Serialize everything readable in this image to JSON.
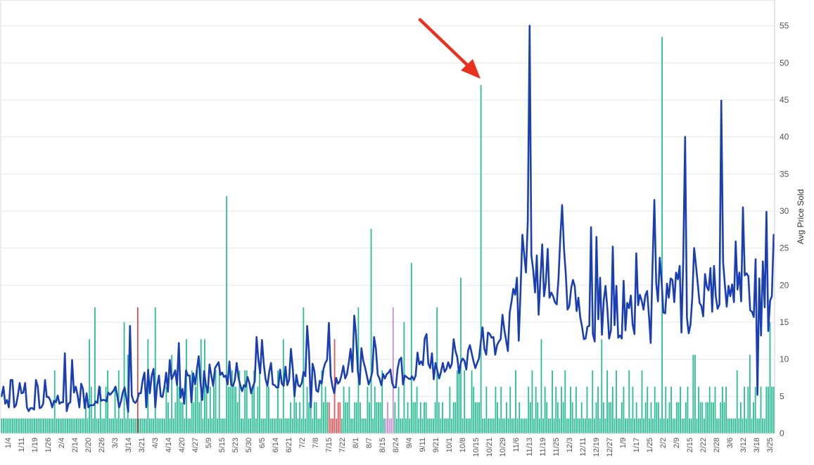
{
  "chart_data": {
    "type": "bar+line",
    "xlabel": "",
    "ylabel": "Avg Price Sold",
    "ylim": [
      0,
      58
    ],
    "yticks": [
      0,
      5,
      10,
      15,
      20,
      25,
      30,
      35,
      40,
      45,
      50,
      55
    ],
    "grid": true,
    "legend": "none",
    "xtick_labels": [
      "1/4",
      "1/11",
      "1/19",
      "1/26",
      "2/4",
      "2/14",
      "2/20",
      "2/26",
      "3/3",
      "3/14",
      "3/21",
      "4/3",
      "4/14",
      "4/20",
      "4/27",
      "5/9",
      "5/15",
      "5/23",
      "5/30",
      "6/5",
      "6/14",
      "6/21",
      "7/2",
      "7/8",
      "7/15",
      "7/22",
      "8/1",
      "8/7",
      "8/15",
      "8/24",
      "9/4",
      "9/11",
      "9/21",
      "10/1",
      "10/8",
      "10/15",
      "10/21",
      "10/29",
      "11/6",
      "11/13",
      "11/19",
      "11/25",
      "12/3",
      "12/11",
      "12/19",
      "12/27",
      "1/9",
      "1/17",
      "1/25",
      "2/2",
      "2/9",
      "2/15",
      "2/22",
      "2/28",
      "3/6",
      "3/12",
      "3/18",
      "3/25"
    ],
    "bar_values": [
      2,
      2,
      2,
      2,
      2,
      2,
      2,
      2,
      2,
      2,
      2,
      2,
      2,
      2,
      2,
      2,
      2,
      2,
      2,
      2,
      2,
      2,
      2,
      2,
      2,
      2,
      2,
      2,
      2,
      8.5,
      2,
      2,
      2,
      2,
      2,
      2,
      2,
      2,
      2,
      2,
      2,
      2,
      2,
      2,
      2,
      2,
      4,
      2,
      12.7,
      6.3,
      2,
      17,
      2,
      2,
      6.3,
      2,
      2,
      6.3,
      8.5,
      2,
      2,
      2,
      6.3,
      2,
      8.5,
      2,
      2,
      15,
      2,
      10.6,
      2,
      2,
      2,
      2,
      2,
      2,
      2,
      2,
      2,
      2,
      12.7,
      2,
      2,
      2,
      17,
      2,
      2,
      2,
      2,
      2,
      6.3,
      4.2,
      2,
      10.6,
      2,
      4.2,
      8.5,
      6.3,
      4.2,
      4.2,
      2,
      12.7,
      2,
      2,
      8.5,
      4.2,
      6.3,
      8.5,
      4.2,
      12.7,
      2,
      12.7,
      6.3,
      2,
      6.3,
      2,
      6.3,
      8.5,
      2,
      8.5,
      2,
      2,
      2,
      32,
      6.3,
      6.3,
      8.5,
      6.3,
      6.3,
      4.2,
      8.5,
      2,
      2,
      8.5,
      8.5,
      2,
      2,
      6.3,
      8.5,
      2,
      6.3,
      8.5,
      2,
      2,
      2,
      6.3,
      6.3,
      2,
      2,
      2,
      2,
      8.5,
      2,
      2,
      12.7,
      2,
      2,
      2,
      4.2,
      2,
      6.3,
      4.2,
      2,
      4.2,
      2,
      17,
      2,
      6.3,
      4.2,
      4.2,
      2,
      4.2,
      4.2,
      2,
      2,
      8.5,
      4.2,
      6.3,
      4.2,
      4.2,
      2,
      2,
      12.7,
      2,
      4.2,
      4.2,
      2,
      6.3,
      4.2,
      4.2,
      6.3,
      2,
      2,
      4.2,
      4.2,
      17,
      4.2,
      2,
      2,
      2,
      6.3,
      4.2,
      27.6,
      2,
      6.3,
      4.2,
      4.2,
      4.2,
      8.5,
      2,
      2,
      4.2,
      2,
      2,
      17,
      4.2,
      2,
      6.3,
      2,
      2,
      15,
      2,
      4.2,
      2,
      23,
      4.2,
      4.2,
      6.3,
      2,
      4.2,
      2,
      4.2,
      4.2,
      2,
      2,
      2,
      2,
      4.2,
      17,
      4.2,
      2,
      4.2,
      2,
      2,
      2,
      6.3,
      2,
      4.2,
      4.2,
      8.5,
      8.5,
      21,
      2,
      8.5,
      2,
      2,
      2,
      8.5,
      6.3,
      4.2,
      4.2,
      4.2,
      47,
      2,
      2,
      6.3,
      2,
      2,
      2,
      2,
      6.3,
      4.2,
      2,
      6.3,
      2,
      2,
      4.2,
      2,
      6.3,
      2,
      2,
      8.5,
      2,
      4.2,
      2,
      2,
      2,
      2,
      6.3,
      4.2,
      8.5,
      2,
      6.3,
      4.2,
      2,
      12.7,
      2,
      6.3,
      4.2,
      2,
      2,
      8.5,
      2,
      6.3,
      4.2,
      2,
      6.3,
      4.2,
      8.5,
      2,
      2,
      6.3,
      4.2,
      2,
      6.3,
      2,
      2,
      4.2,
      2,
      2,
      6.3,
      2,
      2,
      8.5,
      2,
      4.2,
      6.3,
      2,
      12.7,
      4.2,
      2,
      8.5,
      4.2,
      4.2,
      6.3,
      2,
      8.5,
      2,
      2,
      4.2,
      6.3,
      2,
      2,
      8.5,
      2,
      6.3,
      2,
      4.2,
      2,
      2,
      8.5,
      2,
      4.2,
      6.3,
      2,
      4.2,
      2,
      6.3,
      4.2,
      4.2,
      2,
      53.5,
      2,
      6.3,
      2,
      4.2,
      6.3,
      2,
      2,
      4.2,
      4.2,
      6.3,
      2,
      2,
      4.2,
      6.3,
      2,
      2,
      10.6,
      10.6,
      2,
      6.3,
      4.2,
      4.2,
      2,
      4.2,
      4.2,
      6.3,
      4.2,
      4.2,
      6.3,
      2,
      2,
      4.2,
      6.3,
      4.2,
      6.3,
      2,
      2,
      2,
      2,
      2,
      8.5,
      2,
      4.2,
      2,
      6.3,
      2,
      6.3,
      10.6,
      2,
      4.2,
      6.3,
      2,
      2,
      6.3,
      2,
      2,
      6.3,
      6.3,
      15,
      6.3,
      6.3
    ],
    "line_values": [
      5,
      6.3,
      4,
      4.5,
      3.5,
      7.2,
      7.2,
      3.5,
      3.8,
      5.1,
      6.8,
      5.4,
      5.5,
      6.8,
      3.5,
      3,
      3.4,
      3.4,
      3.2,
      7.2,
      6.3,
      3.4,
      3.5,
      4,
      7.2,
      4.9,
      4.9,
      4.4,
      3.5,
      4.4,
      4.2,
      5.1,
      4,
      4.2,
      4.2,
      10.8,
      3,
      4,
      4.2,
      9.9,
      5.5,
      6.3,
      5.2,
      3.5,
      6.7,
      6,
      3.4,
      5.4,
      3.5,
      3.8,
      3.8,
      3.8,
      4.3,
      4.1,
      6.3,
      4.4,
      4.5,
      4.5,
      4.3,
      5.5,
      5.2,
      5.5,
      5.8,
      6.3,
      5,
      3.5,
      4.3,
      5.5,
      6.2,
      4.7,
      2.9,
      14.5,
      5.1,
      4.3,
      4.1,
      4.5,
      5.4,
      5.4,
      7.2,
      8.2,
      3.5,
      8.6,
      5.4,
      7.8,
      8.7,
      3.5,
      6.4,
      7.8,
      5,
      4.9,
      6.2,
      8.2,
      5.6,
      9.9,
      7.3,
      7.8,
      8.5,
      6.5,
      12.2,
      4.8,
      6,
      4,
      8.5,
      7.8,
      7.8,
      4.2,
      8.1,
      6.6,
      8.7,
      10.4,
      6.8,
      4.5,
      8.4,
      6.5,
      5.5,
      9.3,
      7.8,
      6.4,
      8.8,
      9.2,
      9.6,
      7.9,
      8.2,
      7.6,
      7.8,
      6.6,
      9.7,
      6.5,
      6.4,
      7.2,
      9.5,
      7.5,
      6.5,
      5.7,
      6.5,
      6.3,
      7.6,
      6.8,
      5.4,
      6.3,
      7,
      13,
      10,
      8.1,
      12.6,
      9.4,
      7.3,
      6.4,
      8.3,
      9.5,
      6.6,
      6.5,
      6.2,
      6.2,
      8.6,
      6.7,
      6.4,
      9,
      6.5,
      7.2,
      11.4,
      8.8,
      5,
      7.9,
      6.5,
      6.3,
      6.8,
      8.3,
      7.7,
      14.5,
      11,
      3.5,
      9.4,
      8.4,
      5.8,
      5.6,
      7.1,
      6.7,
      8.7,
      9.5,
      9.9,
      14.9,
      7.8,
      6.3,
      5.4,
      7.5,
      6.7,
      7,
      7.9,
      9.1,
      7.4,
      8,
      9.5,
      11.4,
      8.3,
      15.9,
      13.4,
      8.4,
      6.6,
      11.5,
      9.8,
      8.9,
      7.8,
      6.6,
      7.3,
      8.3,
      13,
      11.4,
      7.9,
      7.4,
      6.5,
      8,
      7.4,
      8,
      8.2,
      8.6,
      6.8,
      6.2,
      6.2,
      8.7,
      9.9,
      10.2,
      6.6,
      7.8,
      7.6,
      7.4,
      7.3,
      7.7,
      7.2,
      7.8,
      10.9,
      9.3,
      9.7,
      9.2,
      12.8,
      13.4,
      9.4,
      8.8,
      10.8,
      7.3,
      9.5,
      8.4,
      7.4,
      8.3,
      9.5,
      8.3,
      8.7,
      9.6,
      8.8,
      9.4,
      12.7,
      11.1,
      10.3,
      8.1,
      9.6,
      10.1,
      9.8,
      8.6,
      11.2,
      11.9,
      10.8,
      9.7,
      8.8,
      9.5,
      10.1,
      12.3,
      14.3,
      11.4,
      10.6,
      13.6,
      13.4,
      12.9,
      13,
      10.6,
      11.9,
      12.4,
      12.7,
      16,
      14,
      12.6,
      11.1,
      16.3,
      17.8,
      19.5,
      18.7,
      21,
      12.5,
      19.2,
      26.8,
      24.2,
      21.7,
      28.7,
      55,
      24,
      22,
      19,
      24,
      16,
      21,
      25.5,
      18.5,
      20.4,
      24.9,
      18.3,
      19,
      18.5,
      17.7,
      17.4,
      21,
      26.4,
      30.8,
      25,
      21.5,
      16.7,
      17.2,
      19.6,
      20.7,
      19.8,
      16.5,
      18.3,
      15.7,
      14.4,
      12.7,
      12.8,
      14.4,
      14.5,
      27.8,
      13.4,
      12.4,
      26.5,
      15.4,
      21,
      13.3,
      17.9,
      19.9,
      16.8,
      12.8,
      13.9,
      25.2,
      14.6,
      19.9,
      12.9,
      13.2,
      12.8,
      20.6,
      13.9,
      17.6,
      16.9,
      18.6,
      14.7,
      13.4,
      24.3,
      17.3,
      18.7,
      17.9,
      16.7,
      18.6,
      19.2,
      15.9,
      12.2,
      22.7,
      31.5,
      20.3,
      17.8,
      23.7,
      20.5,
      16.3,
      16.2,
      20.2,
      18.3,
      20.9,
      20.7,
      17.7,
      21.7,
      20.8,
      22.6,
      13.6,
      23.6,
      40,
      15.6,
      13.5,
      14.7,
      18.5,
      25,
      22.7,
      20.2,
      17.6,
      17.2,
      15.8,
      21.5,
      19.8,
      19.3,
      22.3,
      16.4,
      22.6,
      18.4,
      16.8,
      17.4,
      44.9,
      23.1,
      20.1,
      17.1,
      19.9,
      18.5,
      20.1,
      17.7,
      25.9,
      19.4,
      21.7,
      17.8,
      30.5,
      21.3,
      21.6,
      21.2,
      16.6,
      16.4,
      15.7,
      23.5,
      5.2,
      20.9,
      13.2,
      23.2,
      17,
      29.9,
      13.8,
      17.9,
      18.5,
      26.8
    ],
    "highlight_bars": [
      {
        "range": [
          179,
          185
        ],
        "color": "#e05a5a"
      },
      {
        "range": [
          210,
          214
        ],
        "color": "#c58fd0"
      }
    ],
    "annotation": "red-arrow",
    "colors": {
      "bars": "#2dbd96",
      "line": "#1a3fb3",
      "arrow": "#e8321f",
      "grid": "#e6e6e6",
      "red_bar": "#d93b3b",
      "purple_bar": "#c58fd0"
    }
  }
}
